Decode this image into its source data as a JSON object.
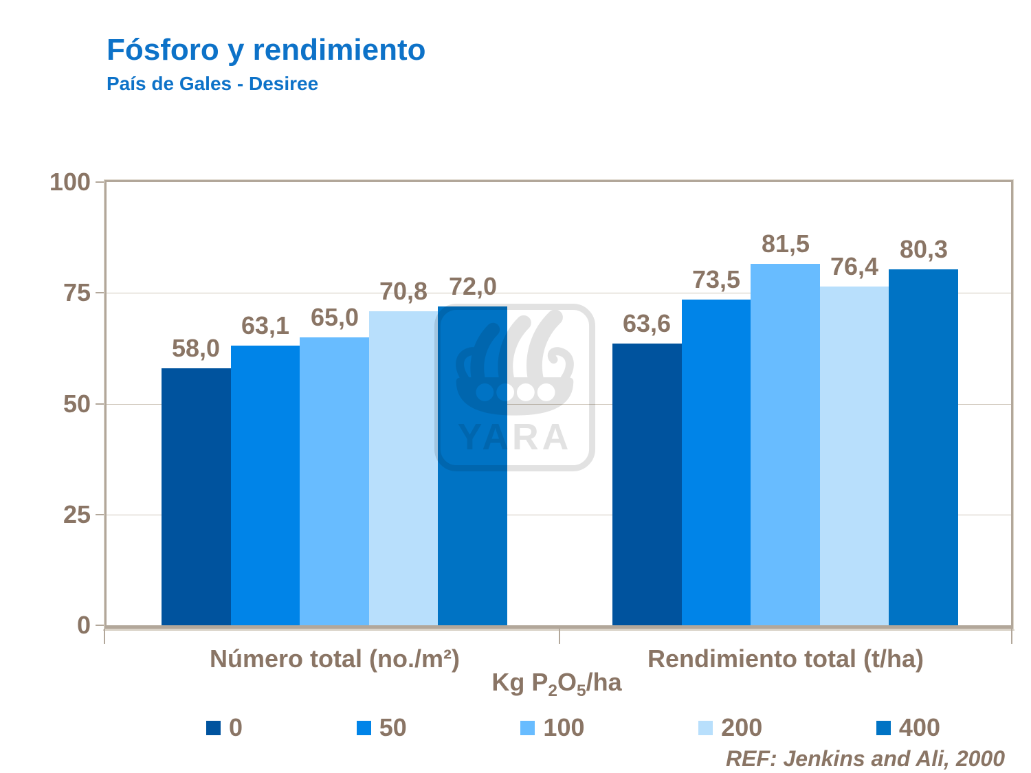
{
  "header": {
    "title": "Fósforo y rendimiento",
    "subtitle": "País de Gales - Desiree"
  },
  "chart_data": {
    "type": "bar",
    "title": "Fósforo y rendimiento",
    "subtitle": "País de Gales - Desiree",
    "categories": [
      "Número total (no./m²)",
      "Rendimiento total (t/ha)"
    ],
    "series": [
      {
        "name": "0",
        "color": "#00539e",
        "values": [
          58.0,
          63.6
        ],
        "labels": [
          "58,0",
          "63,6"
        ]
      },
      {
        "name": "50",
        "color": "#0084e8",
        "values": [
          63.1,
          73.5
        ],
        "labels": [
          "63,1",
          "73,5"
        ]
      },
      {
        "name": "100",
        "color": "#68bcff",
        "values": [
          65.0,
          81.5
        ],
        "labels": [
          "65,0",
          "81,5"
        ]
      },
      {
        "name": "200",
        "color": "#b8dffc",
        "values": [
          70.8,
          76.4
        ],
        "labels": [
          "70,8",
          "76,4"
        ]
      },
      {
        "name": "400",
        "color": "#0073c4",
        "values": [
          72.0,
          80.3
        ],
        "labels": [
          "72,0",
          "80,3"
        ]
      }
    ],
    "xlabel": "Kg P₂O₅/ha",
    "ylabel": "",
    "ylim": [
      0,
      100
    ],
    "yticks": [
      0,
      25,
      50,
      75,
      100
    ],
    "grid": true,
    "legend_position": "bottom",
    "decimal_separator": ","
  },
  "xaxis_title": {
    "prefix": "Kg P",
    "sub1": "2",
    "mid": "O",
    "sub2": "5",
    "suffix": "/ha"
  },
  "watermark": {
    "text": "YARA"
  },
  "footer": {
    "reference": "REF: Jenkins and Ali, 2000"
  },
  "colors": {
    "title_blue": "#0d72c8",
    "axis_text": "#8a7565",
    "frame": "#b2a79a",
    "gridline": "#cdc5b8",
    "watermark_gray": "#e2e2e2"
  }
}
